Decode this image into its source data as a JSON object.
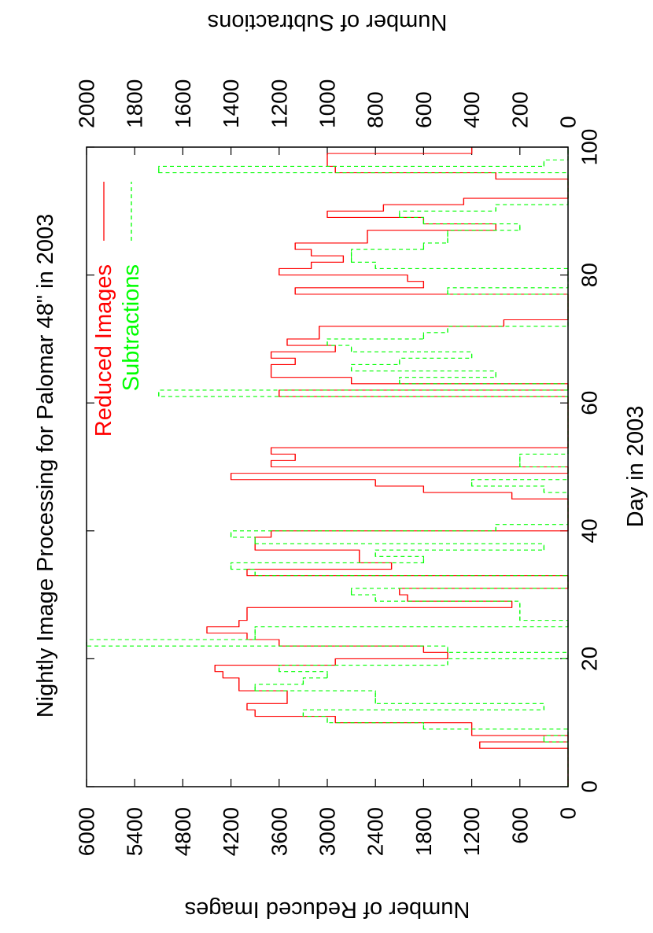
{
  "chart_data": {
    "type": "steps",
    "title": "Nightly Image Processing for Palomar 48\" in 2003",
    "x_label": "Day in 2003",
    "y_label": "Number of Reduced Images",
    "y2_label": "Number of Subtractions",
    "xlim": [
      0,
      100
    ],
    "xticks": [
      0,
      20,
      40,
      60,
      80,
      100
    ],
    "ylim": [
      0,
      6000
    ],
    "yticks": [
      0,
      600,
      1200,
      1800,
      2400,
      3000,
      3600,
      4200,
      4800,
      5400,
      6000
    ],
    "y2lim": [
      0,
      2000
    ],
    "y2ticks": [
      0,
      200,
      400,
      600,
      800,
      1000,
      1200,
      1400,
      1600,
      1800,
      2000
    ],
    "legend": "top-right",
    "x": [
      0,
      1,
      2,
      3,
      4,
      5,
      6,
      7,
      8,
      9,
      10,
      11,
      12,
      13,
      14,
      15,
      16,
      17,
      18,
      19,
      20,
      21,
      22,
      23,
      24,
      25,
      26,
      27,
      28,
      29,
      30,
      31,
      32,
      33,
      34,
      35,
      36,
      37,
      38,
      39,
      40,
      41,
      42,
      43,
      44,
      45,
      46,
      47,
      48,
      49,
      50,
      51,
      52,
      53,
      54,
      55,
      56,
      57,
      58,
      59,
      60,
      61,
      62,
      63,
      64,
      65,
      66,
      67,
      68,
      69,
      70,
      71,
      72,
      73,
      74,
      75,
      76,
      77,
      78,
      79,
      80,
      81,
      82,
      83,
      84,
      85,
      86,
      87,
      88,
      89,
      90,
      91,
      92,
      93,
      94,
      95,
      96,
      97,
      98,
      99
    ],
    "series": [
      {
        "name": "Reduced Images",
        "color": "#ff0000",
        "dash": false,
        "values": [
          0,
          0,
          0,
          0,
          0,
          0,
          1100,
          0,
          1200,
          1200,
          2900,
          3900,
          4000,
          3500,
          3500,
          4100,
          4100,
          4300,
          4400,
          2900,
          1500,
          1800,
          3600,
          4000,
          4500,
          4100,
          4000,
          4000,
          700,
          2000,
          2100,
          0,
          0,
          4000,
          2200,
          2600,
          2600,
          3900,
          3900,
          3700,
          0,
          0,
          0,
          0,
          0,
          700,
          1800,
          2400,
          4200,
          0,
          3700,
          3400,
          3700,
          0,
          0,
          0,
          0,
          0,
          0,
          0,
          0,
          3600,
          0,
          2700,
          3700,
          3700,
          3400,
          3700,
          2900,
          3500,
          3100,
          3100,
          800,
          0,
          0,
          0,
          0,
          3400,
          1800,
          2000,
          3600,
          3200,
          2800,
          3200,
          3400,
          2500,
          2500,
          900,
          1800,
          3000,
          2300,
          1300,
          0,
          0,
          0,
          900,
          2900,
          3000,
          3000,
          1200
        ]
      },
      {
        "name": "Subtractions",
        "color": "#00ff00",
        "dash": true,
        "axis": "y2",
        "values": [
          0,
          0,
          0,
          0,
          0,
          0,
          0,
          100,
          0,
          600,
          1000,
          1100,
          100,
          800,
          800,
          1300,
          1100,
          1000,
          1200,
          500,
          0,
          500,
          2000,
          1300,
          1300,
          0,
          200,
          200,
          200,
          800,
          900,
          0,
          0,
          1300,
          1400,
          600,
          800,
          100,
          1300,
          1400,
          300,
          0,
          0,
          0,
          0,
          0,
          100,
          400,
          0,
          0,
          200,
          200,
          0,
          0,
          0,
          0,
          0,
          0,
          0,
          0,
          0,
          1700,
          0,
          700,
          300,
          900,
          700,
          400,
          900,
          1000,
          600,
          500,
          0,
          0,
          0,
          0,
          0,
          500,
          0,
          0,
          0,
          800,
          900,
          900,
          600,
          500,
          500,
          200,
          600,
          700,
          300,
          0,
          0,
          0,
          0,
          0,
          1700,
          100,
          0,
          0
        ]
      }
    ]
  }
}
